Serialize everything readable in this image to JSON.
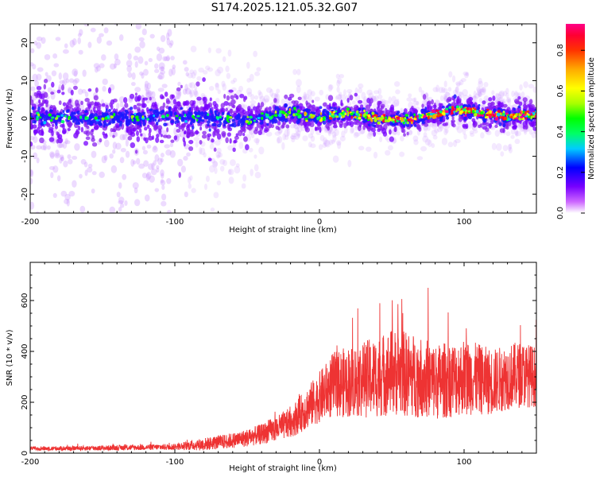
{
  "title": "S174.2025.121.05.32.G07",
  "colors": {
    "snr_line": "#ee3333",
    "plot_frame": "#000000",
    "background": "#ffffff"
  },
  "chart_data": [
    {
      "type": "heatmap",
      "xlabel": "Height of straight line (km)",
      "ylabel": "Frequency (Hz)",
      "xlim": [
        -200,
        150
      ],
      "ylim": [
        -25,
        25
      ],
      "x_ticks": [
        -200,
        -100,
        0,
        100
      ],
      "y_ticks": [
        -20,
        -10,
        0,
        10,
        20
      ],
      "colorbar": {
        "label": "Normalized spectral amplitude",
        "range": [
          0.0,
          0.93
        ],
        "ticks": [
          "0.0",
          "0.2",
          "0.4",
          "0.6",
          "0.8"
        ],
        "tick_values": [
          0.0,
          0.2,
          0.4,
          0.6,
          0.8
        ],
        "colormap": [
          "#ffffff",
          "#cc66ff",
          "#7700ff",
          "#0000ff",
          "#00ccff",
          "#00ff66",
          "#00ff00",
          "#aaff00",
          "#ffff00",
          "#ffaa00",
          "#ff3300",
          "#ff0033",
          "#ff0088"
        ]
      },
      "ridge": {
        "description_points_x": [
          -200,
          -150,
          -100,
          -50,
          -20,
          0,
          20,
          40,
          60,
          80,
          95,
          110,
          130,
          150
        ],
        "description_points_y": [
          0.5,
          0.0,
          0.5,
          -0.5,
          1.5,
          0.0,
          1.5,
          0.0,
          -0.5,
          1.0,
          2.5,
          1.5,
          0.5,
          1.0
        ]
      }
    },
    {
      "type": "line",
      "xlabel": "Height of straight line (km)",
      "ylabel": "SNR (10 * v/v)",
      "xlim": [
        -200,
        150
      ],
      "ylim": [
        0,
        750
      ],
      "x_ticks": [
        -200,
        -100,
        0,
        100
      ],
      "y_ticks": [
        0,
        200,
        400,
        600
      ],
      "envelope_x": [
        -200,
        -150,
        -100,
        -80,
        -60,
        -50,
        -40,
        -30,
        -20,
        -10,
        0,
        10,
        20,
        30,
        40,
        50,
        60,
        70,
        80,
        90,
        100,
        110,
        120,
        130,
        140,
        150
      ],
      "envelope_mean": [
        18,
        20,
        25,
        35,
        50,
        60,
        75,
        95,
        120,
        170,
        220,
        270,
        280,
        290,
        300,
        320,
        310,
        300,
        280,
        290,
        300,
        290,
        280,
        300,
        310,
        300
      ],
      "envelope_spread": [
        8,
        10,
        12,
        25,
        30,
        35,
        40,
        50,
        60,
        80,
        100,
        130,
        140,
        150,
        160,
        170,
        170,
        160,
        150,
        150,
        150,
        140,
        130,
        130,
        130,
        120
      ],
      "series": [
        {
          "color": "#ee3333"
        }
      ]
    }
  ]
}
